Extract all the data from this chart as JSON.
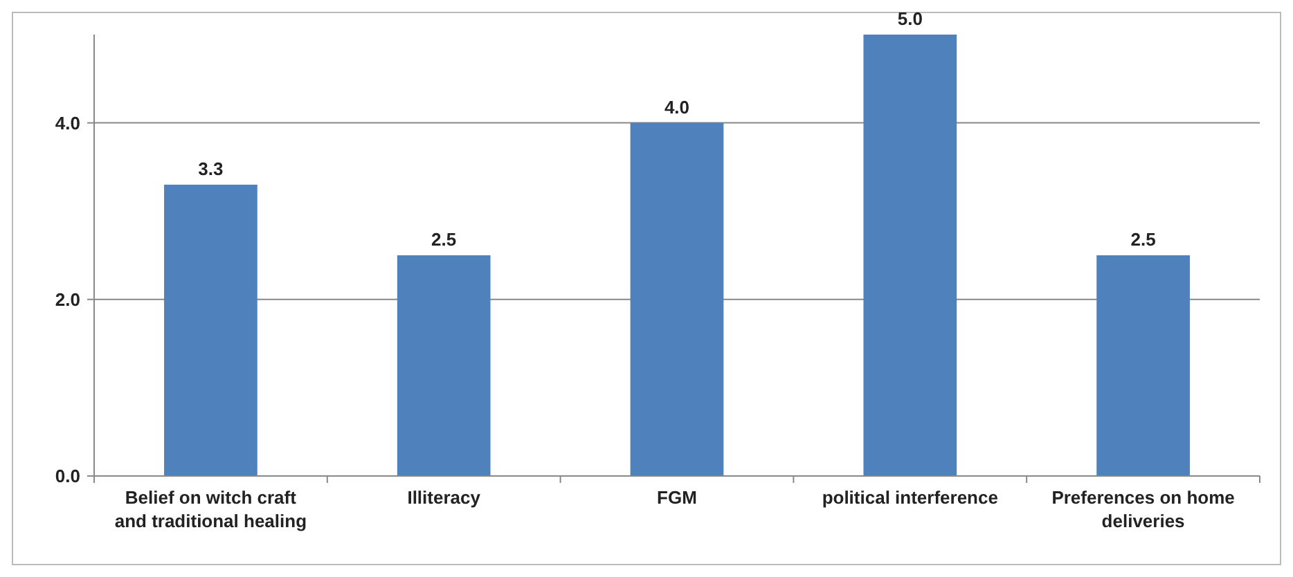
{
  "chart_data": {
    "type": "bar",
    "categories": [
      "Belief on witch craft and traditional healing",
      "Illiteracy",
      "FGM",
      "political interference",
      "Preferences on home deliveries"
    ],
    "values": [
      3.3,
      2.5,
      4.0,
      5.0,
      2.5
    ],
    "value_labels": [
      "3.3",
      "2.5",
      "4.0",
      "5.0",
      "2.5"
    ],
    "color": "#4f81bd",
    "ylim": [
      0,
      5
    ],
    "yticks": [
      {
        "value": 0,
        "label": "0.0"
      },
      {
        "value": 2,
        "label": "2.0"
      },
      {
        "value": 4,
        "label": "4.0"
      }
    ],
    "grid": "y"
  }
}
